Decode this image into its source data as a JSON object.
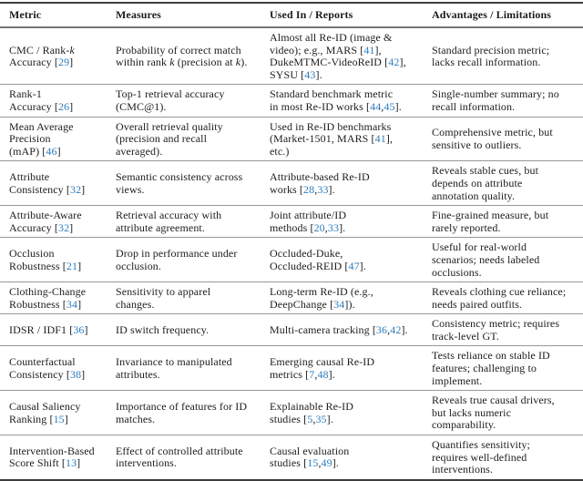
{
  "colors": {
    "citation": "#2e7cbe",
    "text": "#1c1c1c",
    "rule_outer": "#3d3d3d",
    "rule_header": "#767676",
    "rule_row": "#989898"
  },
  "table": {
    "headers": [
      "Metric",
      "Measures",
      "Used In / Reports",
      "Advantages / Limitations"
    ],
    "rows": [
      {
        "cells": [
          [
            {
              "t": "CMC / Rank-"
            },
            {
              "i": "k"
            },
            {
              "t": "\nAccuracy ["
            },
            {
              "c": "29"
            },
            {
              "t": "]"
            }
          ],
          [
            {
              "t": "Probability of correct match\nwithin rank "
            },
            {
              "i": "k"
            },
            {
              "t": " (precision at "
            },
            {
              "i": "k"
            },
            {
              "t": ")."
            }
          ],
          [
            {
              "t": "Almost all Re-ID (image &\nvideo); e.g., MARS ["
            },
            {
              "c": "41"
            },
            {
              "t": "],\nDukeMTMC-VideoReID ["
            },
            {
              "c": "42"
            },
            {
              "t": "],\nSYSU ["
            },
            {
              "c": "43"
            },
            {
              "t": "]."
            }
          ],
          [
            {
              "t": "Standard precision metric;\nlacks recall information."
            }
          ]
        ]
      },
      {
        "cells": [
          [
            {
              "t": "Rank-1\nAccuracy ["
            },
            {
              "c": "26"
            },
            {
              "t": "]"
            }
          ],
          [
            {
              "t": "Top-1 retrieval accuracy\n(CMC@1)."
            }
          ],
          [
            {
              "t": "Standard benchmark metric\nin most Re-ID works ["
            },
            {
              "c": "44"
            },
            {
              "t": ","
            },
            {
              "c": "45"
            },
            {
              "t": "]."
            }
          ],
          [
            {
              "t": "Single-number summary; no\nrecall information."
            }
          ]
        ]
      },
      {
        "cells": [
          [
            {
              "t": "Mean Average\nPrecision\n(mAP) ["
            },
            {
              "c": "46"
            },
            {
              "t": "]"
            }
          ],
          [
            {
              "t": "Overall retrieval quality\n(precision and recall\naveraged)."
            }
          ],
          [
            {
              "t": "Used in Re-ID benchmarks\n(Market-1501, MARS ["
            },
            {
              "c": "41"
            },
            {
              "t": "],\netc.)"
            }
          ],
          [
            {
              "t": "Comprehensive metric, but\nsensitive to outliers."
            }
          ]
        ]
      },
      {
        "cells": [
          [
            {
              "t": "Attribute\nConsistency ["
            },
            {
              "c": "32"
            },
            {
              "t": "]"
            }
          ],
          [
            {
              "t": "Semantic consistency across\nviews."
            }
          ],
          [
            {
              "t": "Attribute-based Re-ID\nworks ["
            },
            {
              "c": "28"
            },
            {
              "t": ","
            },
            {
              "c": "33"
            },
            {
              "t": "]."
            }
          ],
          [
            {
              "t": "Reveals stable cues, but\ndepends on attribute\nannotation quality."
            }
          ]
        ]
      },
      {
        "cells": [
          [
            {
              "t": "Attribute-Aware\nAccuracy ["
            },
            {
              "c": "32"
            },
            {
              "t": "]"
            }
          ],
          [
            {
              "t": "Retrieval accuracy with\nattribute agreement."
            }
          ],
          [
            {
              "t": "Joint attribute/ID\nmethods ["
            },
            {
              "c": "20"
            },
            {
              "t": ","
            },
            {
              "c": "33"
            },
            {
              "t": "]."
            }
          ],
          [
            {
              "t": "Fine-grained measure, but\nrarely reported."
            }
          ]
        ]
      },
      {
        "cells": [
          [
            {
              "t": "Occlusion\nRobustness ["
            },
            {
              "c": "21"
            },
            {
              "t": "]"
            }
          ],
          [
            {
              "t": "Drop in performance under\nocclusion."
            }
          ],
          [
            {
              "t": "Occluded-Duke,\nOccluded-REID ["
            },
            {
              "c": "47"
            },
            {
              "t": "]."
            }
          ],
          [
            {
              "t": "Useful for real-world\nscenarios; needs labeled\nocclusions."
            }
          ]
        ]
      },
      {
        "cells": [
          [
            {
              "t": "Clothing-Change\nRobustness ["
            },
            {
              "c": "34"
            },
            {
              "t": "]"
            }
          ],
          [
            {
              "t": "Sensitivity to apparel\nchanges."
            }
          ],
          [
            {
              "t": "Long-term Re-ID (e.g.,\nDeepChange ["
            },
            {
              "c": "34"
            },
            {
              "t": "])."
            }
          ],
          [
            {
              "t": "Reveals clothing cue reliance;\nneeds paired outfits."
            }
          ]
        ]
      },
      {
        "cells": [
          [
            {
              "t": "IDSR / IDF1 ["
            },
            {
              "c": "36"
            },
            {
              "t": "]"
            }
          ],
          [
            {
              "t": "ID switch frequency."
            }
          ],
          [
            {
              "t": "Multi-camera tracking ["
            },
            {
              "c": "36"
            },
            {
              "t": ","
            },
            {
              "c": "42"
            },
            {
              "t": "]."
            }
          ],
          [
            {
              "t": "Consistency metric; requires\ntrack-level GT."
            }
          ]
        ]
      },
      {
        "cells": [
          [
            {
              "t": "Counterfactual\nConsistency ["
            },
            {
              "c": "38"
            },
            {
              "t": "]"
            }
          ],
          [
            {
              "t": "Invariance to manipulated\nattributes."
            }
          ],
          [
            {
              "t": "Emerging causal Re-ID\nmetrics ["
            },
            {
              "c": "7"
            },
            {
              "t": ","
            },
            {
              "c": "48"
            },
            {
              "t": "]."
            }
          ],
          [
            {
              "t": "Tests reliance on stable ID\nfeatures; challenging to\nimplement."
            }
          ]
        ]
      },
      {
        "cells": [
          [
            {
              "t": "Causal Saliency\nRanking ["
            },
            {
              "c": "15"
            },
            {
              "t": "]"
            }
          ],
          [
            {
              "t": "Importance of features for ID\nmatches."
            }
          ],
          [
            {
              "t": "Explainable Re-ID\nstudies ["
            },
            {
              "c": "5"
            },
            {
              "t": ","
            },
            {
              "c": "35"
            },
            {
              "t": "]."
            }
          ],
          [
            {
              "t": "Reveals true causal drivers,\nbut lacks numeric\ncomparability."
            }
          ]
        ]
      },
      {
        "cells": [
          [
            {
              "t": "Intervention-Based\nScore Shift ["
            },
            {
              "c": "13"
            },
            {
              "t": "]"
            }
          ],
          [
            {
              "t": "Effect of controlled attribute\ninterventions."
            }
          ],
          [
            {
              "t": "Causal evaluation\nstudies ["
            },
            {
              "c": "15"
            },
            {
              "t": ","
            },
            {
              "c": "49"
            },
            {
              "t": "]."
            }
          ],
          [
            {
              "t": "Quantifies sensitivity;\nrequires well-defined\ninterventions."
            }
          ]
        ]
      }
    ]
  }
}
